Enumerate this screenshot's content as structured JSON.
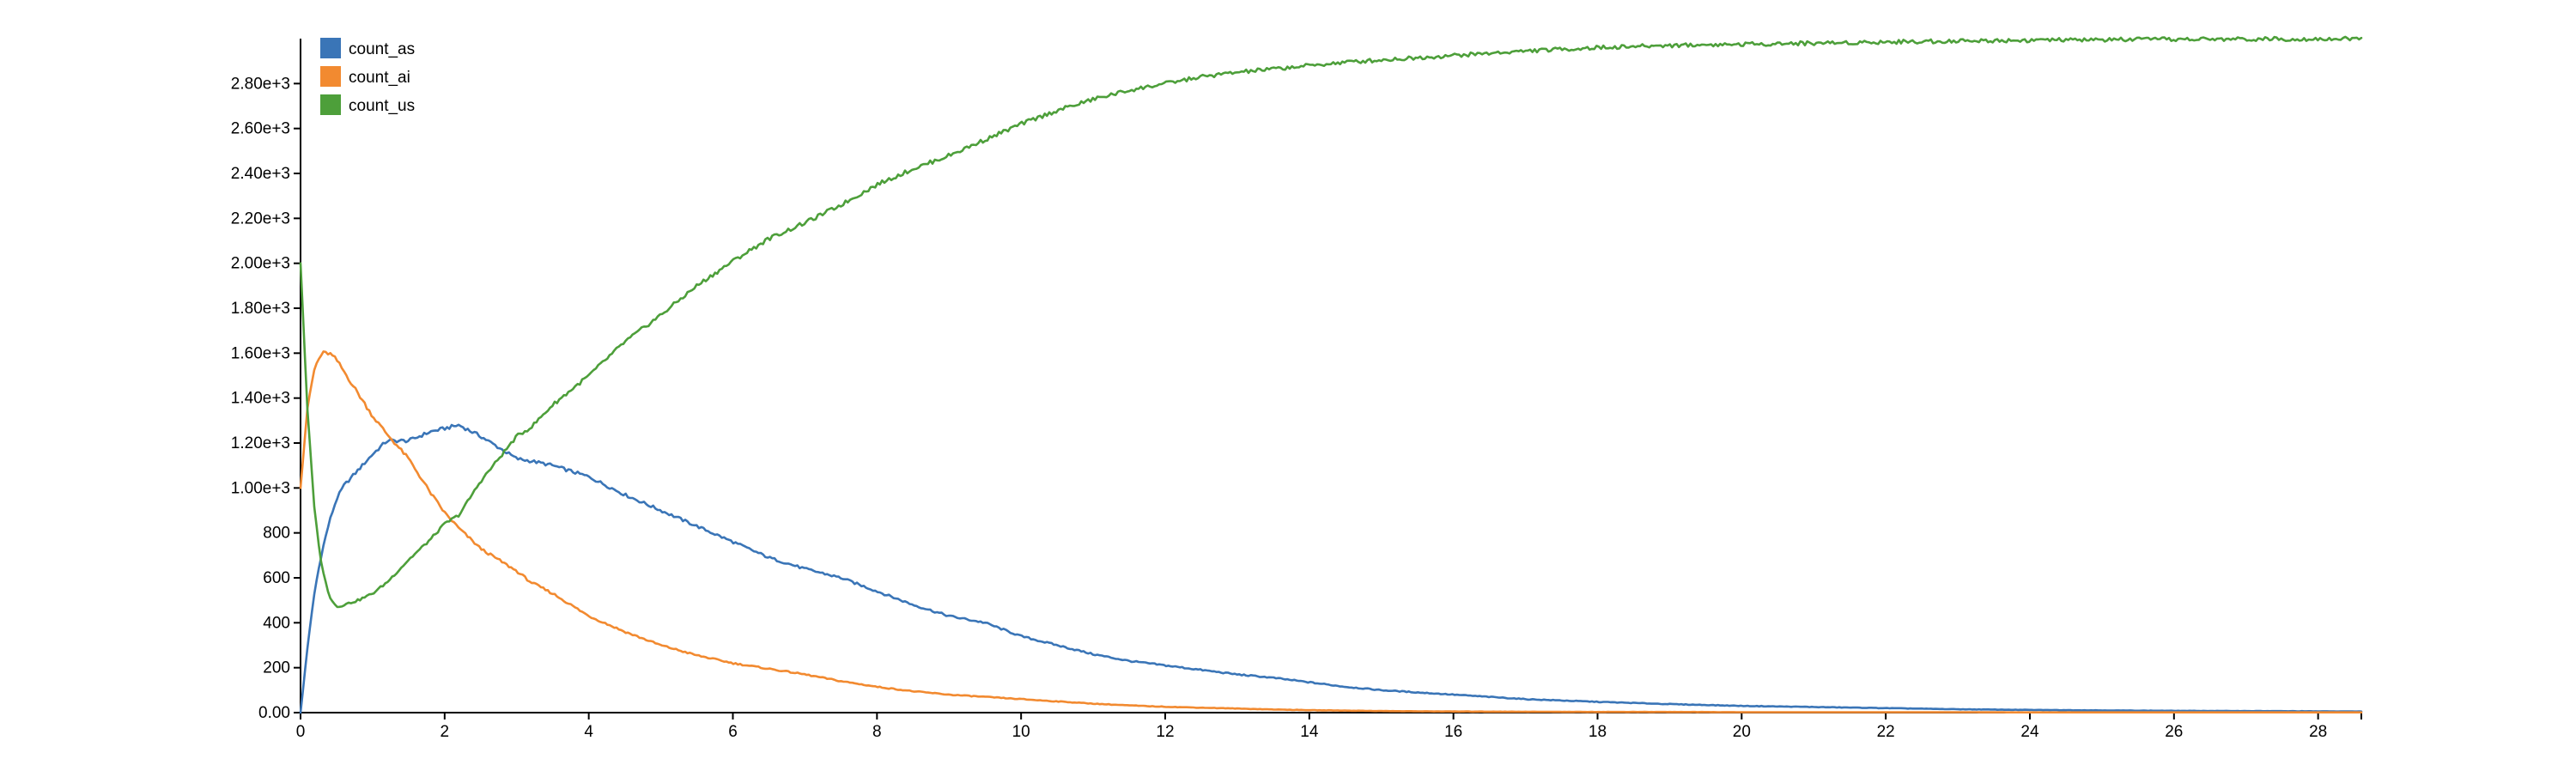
{
  "chart_data": {
    "type": "line",
    "title": "",
    "xlabel": "",
    "ylabel": "",
    "xlim": [
      0,
      28.6
    ],
    "ylim": [
      0,
      3000
    ],
    "grid": false,
    "legend_position": "top-left",
    "x_ticks": [
      0,
      2,
      4,
      6,
      8,
      10,
      12,
      14,
      16,
      18,
      20,
      22,
      24,
      26,
      28
    ],
    "x_tick_labels": [
      "0",
      "2",
      "4",
      "6",
      "8",
      "10",
      "12",
      "14",
      "16",
      "18",
      "20",
      "22",
      "24",
      "26",
      "28"
    ],
    "y_ticks": [
      0,
      200,
      400,
      600,
      800,
      1000,
      1200,
      1400,
      1600,
      1800,
      2000,
      2200,
      2400,
      2600,
      2800
    ],
    "y_tick_labels": [
      "0.00",
      "200",
      "400",
      "600",
      "800",
      "1.00e+3",
      "1.20e+3",
      "1.40e+3",
      "1.60e+3",
      "1.80e+3",
      "2.00e+3",
      "2.20e+3",
      "2.40e+3",
      "2.60e+3",
      "2.80e+3"
    ],
    "x": [
      0,
      0.1,
      0.2,
      0.3,
      0.4,
      0.5,
      0.6,
      0.8,
      1.0,
      1.2,
      1.5,
      1.8,
      2.0,
      2.2,
      2.5,
      2.8,
      3.0,
      3.2,
      3.5,
      4.0,
      4.5,
      5.0,
      5.5,
      6.0,
      6.5,
      7.0,
      7.5,
      8.0,
      8.5,
      9.0,
      9.5,
      10.0,
      10.5,
      11.0,
      11.5,
      12.0,
      12.5,
      13.0,
      13.5,
      14.0,
      14.5,
      15.0,
      16.0,
      17.0,
      18.0,
      19.0,
      20.0,
      21.0,
      22.0,
      23.0,
      24.0,
      25.0,
      26.0,
      27.0,
      28.0,
      28.6
    ],
    "series": [
      {
        "name": "count_as",
        "color": "#3a75b7",
        "values": [
          0,
          300,
          550,
          720,
          850,
          950,
          1010,
          1080,
          1150,
          1210,
          1210,
          1250,
          1265,
          1280,
          1230,
          1170,
          1130,
          1120,
          1100,
          1050,
          970,
          900,
          830,
          760,
          690,
          640,
          600,
          540,
          480,
          430,
          400,
          340,
          300,
          260,
          230,
          210,
          190,
          170,
          155,
          135,
          115,
          100,
          80,
          60,
          48,
          38,
          30,
          25,
          20,
          15,
          12,
          10,
          8,
          7,
          6,
          5
        ]
      },
      {
        "name": "count_ai",
        "color": "#f28a30",
        "values": [
          1000,
          1370,
          1540,
          1600,
          1600,
          1570,
          1520,
          1420,
          1320,
          1240,
          1130,
          980,
          890,
          820,
          730,
          670,
          630,
          580,
          530,
          430,
          360,
          300,
          255,
          220,
          195,
          170,
          140,
          115,
          95,
          80,
          70,
          60,
          50,
          40,
          32,
          26,
          22,
          18,
          14,
          11,
          9,
          7,
          5,
          4,
          3,
          3,
          2,
          2,
          2,
          2,
          1,
          1,
          1,
          1,
          1,
          1
        ]
      },
      {
        "name": "count_us",
        "color": "#4d9f3a",
        "values": [
          2000,
          1320,
          880,
          640,
          520,
          470,
          480,
          500,
          530,
          580,
          680,
          770,
          840,
          880,
          1030,
          1150,
          1230,
          1270,
          1370,
          1500,
          1650,
          1770,
          1900,
          2010,
          2110,
          2180,
          2260,
          2350,
          2420,
          2480,
          2550,
          2620,
          2680,
          2730,
          2770,
          2800,
          2830,
          2850,
          2865,
          2880,
          2895,
          2905,
          2925,
          2945,
          2960,
          2970,
          2975,
          2980,
          2985,
          2990,
          2993,
          2995,
          2997,
          2998,
          2999,
          3000
        ]
      }
    ]
  }
}
